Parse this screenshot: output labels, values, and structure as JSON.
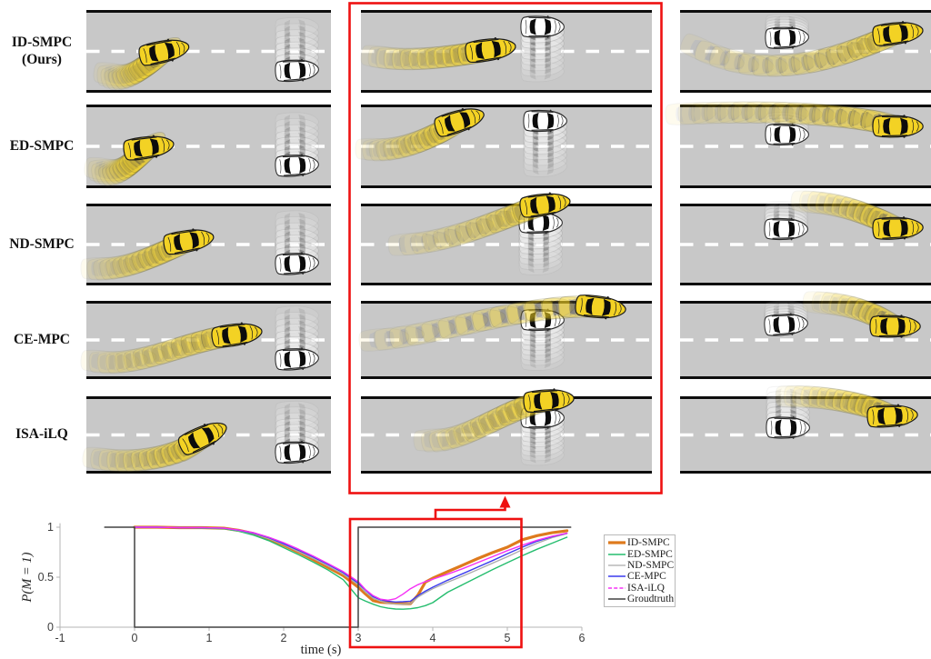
{
  "figure": {
    "type": "paper-figure",
    "description": "Comparison of planner behaviors on a highway cut-in scenario (5 methods x 3 time snapshots) with model-probability plot",
    "rows": [
      {
        "label": "ID-SMPC",
        "sublabel": "(Ours)"
      },
      {
        "label": "ED-SMPC",
        "sublabel": ""
      },
      {
        "label": "ND-SMPC",
        "sublabel": ""
      },
      {
        "label": "CE-MPC",
        "sublabel": ""
      },
      {
        "label": "ISA-iLQ",
        "sublabel": ""
      }
    ]
  },
  "road": {
    "surface": "#c8c8c8",
    "edge_line": "#0d0d0d",
    "lane_dash": "#ffffff"
  },
  "cars": {
    "ego_color": "#f3d224",
    "ego_outline": "#1a1a1a",
    "agent_color": "#ffffff",
    "agent_outline": "#2a2a2a",
    "window_color": "#0c0c0c"
  },
  "highlight": {
    "color": "#ee1111"
  },
  "panels": [
    {
      "row": 0,
      "col": 0,
      "ego": {
        "x": 86,
        "dy": 0,
        "a": -12,
        "trail": {
          "p0": [
            36,
            26
          ],
          "c1": [
            52,
            28
          ],
          "c2": [
            68,
            14
          ],
          "n": 12
        }
      },
      "agent": {
        "x": 232,
        "dy": 21,
        "a": -3,
        "trailFrom": -26,
        "n": 7
      }
    },
    {
      "row": 0,
      "col": 1,
      "ego": {
        "x": 143,
        "dy": -2,
        "a": -8,
        "trail": {
          "p0": [
            28,
            7
          ],
          "c1": [
            62,
            11
          ],
          "c2": [
            108,
            5
          ],
          "n": 13
        }
      },
      "agent": {
        "x": 200,
        "dy": -27,
        "a": 0,
        "trailFrom": 22,
        "n": 8
      }
    },
    {
      "row": 0,
      "col": 2,
      "ego": {
        "x": 240,
        "dy": -20,
        "a": -7,
        "trail": {
          "p0": [
            28,
            0
          ],
          "c1": [
            115,
            38
          ],
          "c2": [
            196,
            -4
          ],
          "n": 16
        }
      },
      "agent": {
        "x": 118,
        "dy": -15,
        "a": -2,
        "trailFrom": -30,
        "n": 5
      }
    },
    {
      "row": 1,
      "col": 0,
      "ego": {
        "x": 69,
        "dy": 1,
        "a": -8,
        "trail": {
          "p0": [
            26,
            26
          ],
          "c1": [
            42,
            28
          ],
          "c2": [
            54,
            14
          ],
          "n": 12
        }
      },
      "agent": {
        "x": 232,
        "dy": 21,
        "a": -3,
        "trailFrom": -26,
        "n": 7
      }
    },
    {
      "row": 1,
      "col": 1,
      "ego": {
        "x": 109,
        "dy": -28,
        "a": -17,
        "trail": {
          "p0": [
            22,
            3
          ],
          "c1": [
            52,
            3
          ],
          "c2": [
            84,
            -13
          ],
          "n": 12
        }
      },
      "agent": {
        "x": 203,
        "dy": -28,
        "a": 0,
        "trailFrom": 22,
        "n": 8
      }
    },
    {
      "row": 1,
      "col": 2,
      "ego": {
        "x": 240,
        "dy": -22,
        "a": 0,
        "trail": {
          "p0": [
            12,
            -36
          ],
          "c1": [
            85,
            -39
          ],
          "c2": [
            175,
            -38
          ],
          "n": 16
        }
      },
      "agent": {
        "x": 118,
        "dy": -13,
        "a": 0,
        "trailFrom": -26,
        "n": 4
      }
    },
    {
      "row": 2,
      "col": 0,
      "ego": {
        "x": 113,
        "dy": -4,
        "a": -10,
        "trail": {
          "p0": [
            22,
            26
          ],
          "c1": [
            52,
            25
          ],
          "c2": [
            82,
            9
          ],
          "n": 13
        }
      },
      "agent": {
        "x": 232,
        "dy": 21,
        "a": -3,
        "trailFrom": -26,
        "n": 7
      }
    },
    {
      "row": 2,
      "col": 1,
      "ego": {
        "x": 203,
        "dy": -44,
        "a": -8,
        "trail": {
          "p0": [
            58,
            -1
          ],
          "c1": [
            112,
            -6
          ],
          "c2": [
            168,
            -35
          ],
          "n": 13
        }
      },
      "agent": {
        "x": 198,
        "dy": -24,
        "a": 0,
        "trailFrom": 22,
        "n": 8
      }
    },
    {
      "row": 2,
      "col": 2,
      "ego": {
        "x": 240,
        "dy": -18,
        "a": -2,
        "trail": {
          "p0": [
            150,
            -46
          ],
          "c1": [
            184,
            -43
          ],
          "c2": [
            214,
            -30
          ],
          "n": 11
        }
      },
      "agent": {
        "x": 117,
        "dy": -17,
        "a": 0,
        "trailFrom": -36,
        "n": 5
      }
    },
    {
      "row": 3,
      "col": 0,
      "ego": {
        "x": 166,
        "dy": -6,
        "a": -8,
        "trail": {
          "p0": [
            22,
            24
          ],
          "c1": [
            64,
            27
          ],
          "c2": [
            112,
            1
          ],
          "n": 14
        }
      },
      "agent": {
        "x": 232,
        "dy": 21,
        "a": -3,
        "trailFrom": -26,
        "n": 7
      }
    },
    {
      "row": 3,
      "col": 1,
      "ego": {
        "x": 264,
        "dy": -36,
        "a": 6,
        "trail": {
          "p0": [
            26,
            -1
          ],
          "c1": [
            95,
            -8
          ],
          "c2": [
            185,
            -41
          ],
          "n": 13
        }
      },
      "agent": {
        "x": 200,
        "dy": -22,
        "a": 0,
        "trailFrom": 22,
        "n": 8
      }
    },
    {
      "row": 3,
      "col": 2,
      "ego": {
        "x": 237,
        "dy": -15,
        "a": 0,
        "trail": {
          "p0": [
            163,
            -40
          ],
          "c1": [
            194,
            -37
          ],
          "c2": [
            218,
            -26
          ],
          "n": 9
        }
      },
      "agent": {
        "x": 117,
        "dy": -17,
        "a": -4,
        "trailFrom": -32,
        "n": 5
      }
    },
    {
      "row": 4,
      "col": 0,
      "ego": {
        "x": 129,
        "dy": 2,
        "a": -25,
        "trail": {
          "p0": [
            24,
            27
          ],
          "c1": [
            62,
            31
          ],
          "c2": [
            104,
            22
          ],
          "n": 13
        }
      },
      "agent": {
        "x": 232,
        "dy": 19,
        "a": -3,
        "trailFrom": -26,
        "n": 7
      }
    },
    {
      "row": 4,
      "col": 1,
      "ego": {
        "x": 207,
        "dy": -38,
        "a": -5,
        "trail": {
          "p0": [
            86,
            5
          ],
          "c1": [
            122,
            3
          ],
          "c2": [
            162,
            -30
          ],
          "n": 13
        }
      },
      "agent": {
        "x": 200,
        "dy": -19,
        "a": 0,
        "trailFrom": 22,
        "n": 8
      }
    },
    {
      "row": 4,
      "col": 2,
      "ego": {
        "x": 234,
        "dy": -21,
        "a": -3,
        "trail": {
          "p0": [
            133,
            -42
          ],
          "c1": [
            170,
            -41
          ],
          "c2": [
            206,
            -33
          ],
          "n": 12
        }
      },
      "agent": {
        "x": 119,
        "dy": -8,
        "a": 0,
        "trailFrom": -42,
        "n": 6
      }
    }
  ],
  "chart_data": {
    "type": "line",
    "xlabel": "time (s)",
    "ylabel": "P(M = 1)",
    "xlim": [
      -1,
      6
    ],
    "ylim": [
      0,
      1.05
    ],
    "xticks": [
      -1,
      0,
      1,
      2,
      3,
      4,
      5,
      6
    ],
    "yticks": [
      0,
      0.5,
      1
    ],
    "ytick_labels": [
      "0",
      "0.5",
      "1"
    ],
    "grid": false,
    "legend_position": "outside-right",
    "x": [
      0,
      0.3,
      0.6,
      0.9,
      1.2,
      1.4,
      1.6,
      1.8,
      2.0,
      2.2,
      2.4,
      2.6,
      2.8,
      3.0,
      3.1,
      3.2,
      3.3,
      3.4,
      3.5,
      3.6,
      3.7,
      3.8,
      3.9,
      4.0,
      4.2,
      4.4,
      4.6,
      4.8,
      5.0,
      5.2,
      5.4,
      5.6,
      5.8
    ],
    "series": [
      {
        "name": "ID-SMPC",
        "color": "#de7a1d",
        "width": 3.2,
        "dash": "",
        "values": [
          1.0,
          1.0,
          0.995,
          0.995,
          0.99,
          0.968,
          0.935,
          0.885,
          0.82,
          0.75,
          0.675,
          0.595,
          0.515,
          0.4,
          0.33,
          0.265,
          0.25,
          0.245,
          0.24,
          0.235,
          0.235,
          0.32,
          0.45,
          0.49,
          0.555,
          0.62,
          0.685,
          0.745,
          0.8,
          0.875,
          0.915,
          0.945,
          0.965
        ]
      },
      {
        "name": "ED-SMPC",
        "color": "#25bd6e",
        "width": 1.4,
        "dash": "",
        "values": [
          1.0,
          1.0,
          0.995,
          0.99,
          0.985,
          0.96,
          0.92,
          0.865,
          0.795,
          0.725,
          0.65,
          0.57,
          0.475,
          0.295,
          0.26,
          0.23,
          0.205,
          0.19,
          0.182,
          0.18,
          0.185,
          0.195,
          0.215,
          0.245,
          0.35,
          0.425,
          0.5,
          0.575,
          0.645,
          0.715,
          0.78,
          0.84,
          0.9
        ]
      },
      {
        "name": "ND-SMPC",
        "color": "#ababab",
        "width": 1.3,
        "dash": "",
        "values": [
          1.0,
          1.0,
          0.995,
          0.995,
          0.99,
          0.965,
          0.935,
          0.885,
          0.825,
          0.755,
          0.685,
          0.61,
          0.53,
          0.425,
          0.35,
          0.29,
          0.26,
          0.24,
          0.232,
          0.23,
          0.235,
          0.3,
          0.345,
          0.385,
          0.45,
          0.51,
          0.575,
          0.64,
          0.705,
          0.775,
          0.84,
          0.895,
          0.935
        ]
      },
      {
        "name": "CE-MPC",
        "color": "#3b3bee",
        "width": 1.4,
        "dash": "",
        "values": [
          1.0,
          1.0,
          0.995,
          0.995,
          0.99,
          0.97,
          0.94,
          0.895,
          0.835,
          0.77,
          0.7,
          0.625,
          0.545,
          0.44,
          0.37,
          0.305,
          0.275,
          0.26,
          0.252,
          0.255,
          0.26,
          0.315,
          0.36,
          0.4,
          0.47,
          0.535,
          0.6,
          0.665,
          0.735,
          0.8,
          0.86,
          0.905,
          0.94
        ]
      },
      {
        "name": "ISA-iLQ",
        "color": "#f530f5",
        "width": 1.4,
        "dash": "",
        "values": [
          1.0,
          1.0,
          0.995,
          0.995,
          0.99,
          0.972,
          0.945,
          0.9,
          0.845,
          0.78,
          0.71,
          0.635,
          0.555,
          0.455,
          0.375,
          0.315,
          0.28,
          0.27,
          0.285,
          0.33,
          0.385,
          0.425,
          0.455,
          0.48,
          0.53,
          0.585,
          0.645,
          0.705,
          0.765,
          0.82,
          0.87,
          0.91,
          0.94
        ]
      },
      {
        "name": "Groudtruth",
        "color": "#424242",
        "width": 1.5,
        "dash": "",
        "step": [
          [
            -0.4,
            1
          ],
          [
            0,
            1
          ],
          [
            0,
            0
          ],
          [
            3,
            0
          ],
          [
            3,
            1
          ],
          [
            5.85,
            1
          ]
        ],
        "values": []
      }
    ],
    "legend_swatch_dash": {
      "ISA-iLQ": "4 2.2"
    }
  }
}
